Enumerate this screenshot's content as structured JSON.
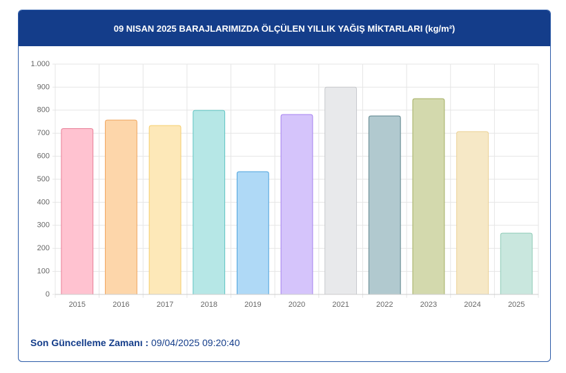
{
  "chart_data": {
    "type": "bar",
    "title": "09 NISAN 2025 BARAJLARIMIZDA ÖLÇÜLEN YILLIK YAĞIŞ MİKTARLARI (kg/m²)",
    "categories": [
      "2015",
      "2016",
      "2017",
      "2018",
      "2019",
      "2020",
      "2021",
      "2022",
      "2023",
      "2024",
      "2025"
    ],
    "values": [
      720,
      757,
      733,
      799,
      533,
      781,
      900,
      775,
      850,
      707,
      266
    ],
    "colors": [
      "#ffc2d0",
      "#fdd6aa",
      "#fde8b8",
      "#b6e7e6",
      "#afd9f6",
      "#d5c4fb",
      "#e8e9eb",
      "#b1c9cf",
      "#d3d9ad",
      "#f6e8c6",
      "#c9e7de"
    ],
    "border_colors": [
      "#e87e97",
      "#f0a55e",
      "#f5cd6c",
      "#5cc4c2",
      "#4ea3dc",
      "#a580f0",
      "#c7c9cc",
      "#5e848c",
      "#a3ae62",
      "#ecd195",
      "#8fcbb7"
    ],
    "ylim": [
      0,
      1000
    ],
    "yticks": [
      0,
      100,
      200,
      300,
      400,
      500,
      600,
      700,
      800,
      900,
      {
        "value": 1000,
        "label": "1.000"
      }
    ],
    "grid": true
  },
  "footer": {
    "label": "Son Güncelleme Zamanı :",
    "time": "09/04/2025 09:20:40"
  }
}
